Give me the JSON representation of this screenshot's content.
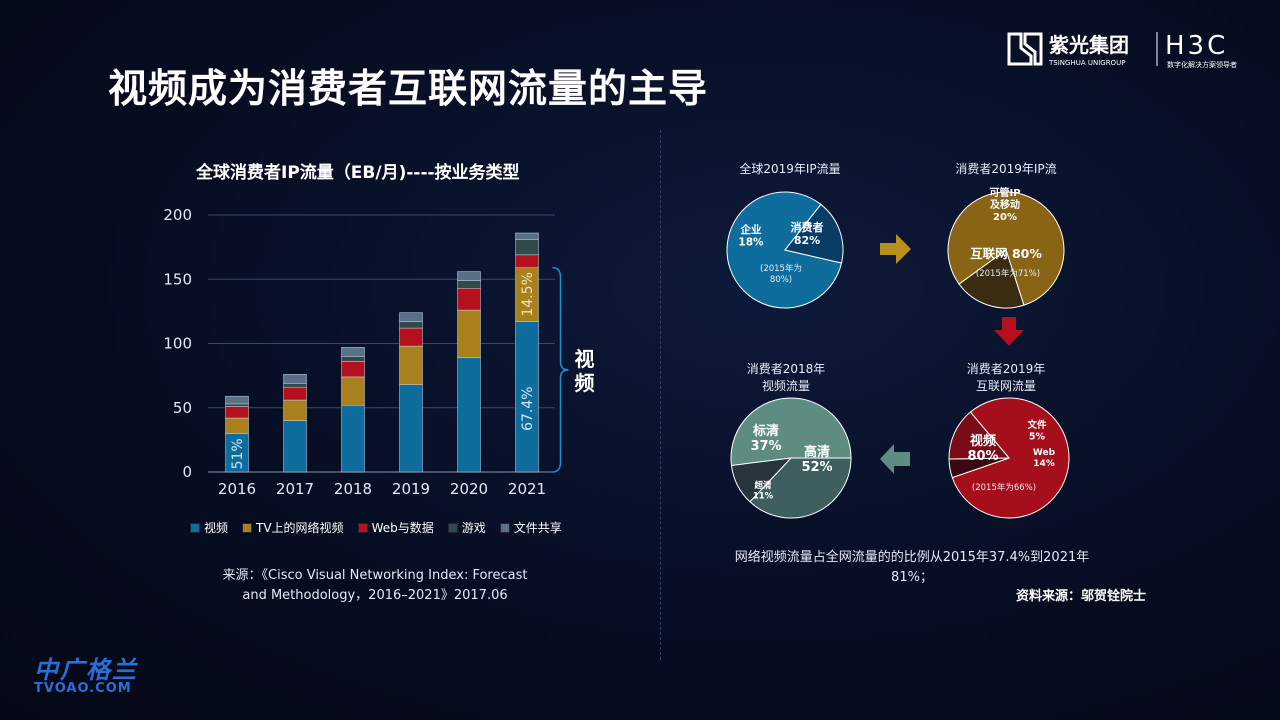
{
  "title": "视频成为消费者互联网流量的主导",
  "logo": {
    "cn": "紫光集团",
    "en": "TSINGHUA UNIGROUP",
    "brand": "H3C",
    "slogan": "数字化解决方案领导者"
  },
  "left": {
    "chart_title": "全球消费者IP流量（EB/月)----按业务类型",
    "bracket_label": "视频",
    "legend": [
      "视频",
      "TV上的网络视频",
      "Web与数据",
      "游戏",
      "文件共享"
    ],
    "source_line1": "来源：《Cisco Visual Networking Index: Forecast",
    "source_line2": "and Methodology，2016–2021》2017.06"
  },
  "chart_data": [
    {
      "type": "bar",
      "stacked": true,
      "title": "全球消费者IP流量（EB/月)----按业务类型",
      "categories": [
        "2016",
        "2017",
        "2018",
        "2019",
        "2020",
        "2021"
      ],
      "ylim": [
        0,
        200
      ],
      "yticks": [
        0,
        50,
        100,
        150,
        200
      ],
      "grid": true,
      "legend_position": "bottom",
      "series": [
        {
          "name": "视频",
          "color": "#0f6d9e",
          "values": [
            30,
            40,
            52,
            68,
            89,
            117
          ]
        },
        {
          "name": "TV上的网络视频",
          "color": "#a8801c",
          "values": [
            12,
            16,
            22,
            30,
            37,
            42
          ]
        },
        {
          "name": "Web与数据",
          "color": "#b5101e",
          "values": [
            9,
            10,
            12,
            14,
            17,
            10
          ]
        },
        {
          "name": "游戏",
          "color": "#2f4a48",
          "values": [
            2,
            3,
            4,
            5,
            6,
            12
          ]
        },
        {
          "name": "文件共享",
          "color": "#5a6f88",
          "values": [
            6,
            7,
            7,
            7,
            7,
            5
          ]
        }
      ],
      "annotations": [
        "51%",
        "67.4%",
        "14.5%"
      ]
    },
    {
      "type": "pie",
      "title": "全球2019年IP流量",
      "labels": [
        "消费者",
        "企业"
      ],
      "values": [
        82,
        18
      ],
      "texts": [
        "消费者\n82%",
        "企业\n18%"
      ],
      "note": "(2015年为\n80%)",
      "colors": [
        "#0f6d9e",
        "#0a3d66"
      ]
    },
    {
      "type": "pie",
      "title": "消费者2019年IP流",
      "labels": [
        "互联网",
        "可管IP及移动"
      ],
      "values": [
        80,
        20
      ],
      "texts": [
        "互联网 80%",
        "可管IP\n及移动\n20%"
      ],
      "note": "(2015年为71%)",
      "colors": [
        "#8a6415",
        "#3a2c10"
      ]
    },
    {
      "type": "pie",
      "title": "消费者2019年互联网流量",
      "labels": [
        "视频",
        "文件",
        "Web"
      ],
      "values": [
        80,
        5,
        14
      ],
      "texts": [
        "视频\n80%",
        "文件\n5%",
        "Web\n14%"
      ],
      "note": "(2015年为66%)",
      "colors": [
        "#a50f1c",
        "#3a0a10",
        "#7a0c18"
      ]
    },
    {
      "type": "pie",
      "title": "消费者2018年视频流量",
      "labels": [
        "高清",
        "标清",
        "超清"
      ],
      "values": [
        52,
        37,
        11
      ],
      "texts": [
        "高清\n52%",
        "标清\n37%",
        "超清\n11%"
      ],
      "colors": [
        "#5e8c80",
        "#3f5e60",
        "#26363c"
      ]
    }
  ],
  "pies": {
    "p1_title": "全球2019年IP流量",
    "p2_title": "消费者2019年IP流",
    "p3_title_l1": "消费者2019年",
    "p3_title_l2": "互联网流量",
    "p4_title_l1": "消费者2018年",
    "p4_title_l2": "视频流量"
  },
  "note_line1": "网络视频流量占全网流量的的比例从2015年37.4%到2021年",
  "note_line2": "81%；",
  "credit": "资料来源：邬贺铨院士",
  "watermark": {
    "cn": "中广格兰",
    "en": "TVOAO.COM"
  }
}
